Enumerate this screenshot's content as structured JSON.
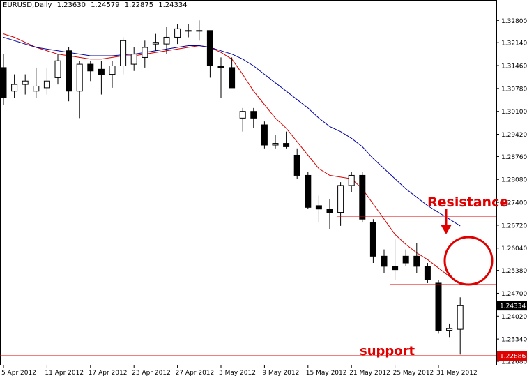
{
  "header": {
    "symbol_label": "EURUSD,Daily",
    "open": "1.23630",
    "high": "1.24579",
    "low": "1.22875",
    "close": "1.24334"
  },
  "chart_data": {
    "type": "candlestick",
    "ylim": [
      1.2268,
      1.332
    ],
    "y_ticks": [
      "1.32800",
      "1.32140",
      "1.31460",
      "1.30780",
      "1.30100",
      "1.29420",
      "1.28760",
      "1.28080",
      "1.27400",
      "1.26720",
      "1.26040",
      "1.25380",
      "1.24700",
      "1.24020",
      "1.23340",
      "1.22680"
    ],
    "x_ticks": [
      {
        "label": "5 Apr 2012",
        "index": 0
      },
      {
        "label": "11 Apr 2012",
        "index": 4
      },
      {
        "label": "17 Apr 2012",
        "index": 8
      },
      {
        "label": "23 Apr 2012",
        "index": 12
      },
      {
        "label": "27 Apr 2012",
        "index": 16
      },
      {
        "label": "3 May 2012",
        "index": 20
      },
      {
        "label": "9 May 2012",
        "index": 24
      },
      {
        "label": "15 May 2012",
        "index": 28
      },
      {
        "label": "21 May 2012",
        "index": 32
      },
      {
        "label": "25 May 2012",
        "index": 36
      },
      {
        "label": "31 May 2012",
        "index": 40
      }
    ],
    "candles": [
      {
        "o": 1.314,
        "h": 1.318,
        "l": 1.303,
        "c": 1.305
      },
      {
        "o": 1.307,
        "h": 1.312,
        "l": 1.305,
        "c": 1.309
      },
      {
        "o": 1.309,
        "h": 1.312,
        "l": 1.306,
        "c": 1.31
      },
      {
        "o": 1.307,
        "h": 1.314,
        "l": 1.305,
        "c": 1.3085
      },
      {
        "o": 1.308,
        "h": 1.314,
        "l": 1.306,
        "c": 1.31
      },
      {
        "o": 1.311,
        "h": 1.318,
        "l": 1.309,
        "c": 1.316
      },
      {
        "o": 1.319,
        "h": 1.32,
        "l": 1.304,
        "c": 1.307
      },
      {
        "o": 1.307,
        "h": 1.316,
        "l": 1.299,
        "c": 1.315
      },
      {
        "o": 1.315,
        "h": 1.316,
        "l": 1.31,
        "c": 1.313
      },
      {
        "o": 1.3135,
        "h": 1.316,
        "l": 1.306,
        "c": 1.312
      },
      {
        "o": 1.312,
        "h": 1.316,
        "l": 1.308,
        "c": 1.3145
      },
      {
        "o": 1.3145,
        "h": 1.323,
        "l": 1.312,
        "c": 1.322
      },
      {
        "o": 1.315,
        "h": 1.32,
        "l": 1.313,
        "c": 1.318
      },
      {
        "o": 1.317,
        "h": 1.322,
        "l": 1.314,
        "c": 1.32
      },
      {
        "o": 1.321,
        "h": 1.324,
        "l": 1.319,
        "c": 1.3215
      },
      {
        "o": 1.321,
        "h": 1.326,
        "l": 1.318,
        "c": 1.323
      },
      {
        "o": 1.323,
        "h": 1.327,
        "l": 1.321,
        "c": 1.3255
      },
      {
        "o": 1.325,
        "h": 1.327,
        "l": 1.323,
        "c": 1.325
      },
      {
        "o": 1.325,
        "h": 1.328,
        "l": 1.322,
        "c": 1.325
      },
      {
        "o": 1.325,
        "h": 1.325,
        "l": 1.311,
        "c": 1.3145
      },
      {
        "o": 1.3145,
        "h": 1.317,
        "l": 1.305,
        "c": 1.314
      },
      {
        "o": 1.314,
        "h": 1.317,
        "l": 1.308,
        "c": 1.308
      },
      {
        "o": 1.299,
        "h": 1.302,
        "l": 1.295,
        "c": 1.301
      },
      {
        "o": 1.301,
        "h": 1.302,
        "l": 1.296,
        "c": 1.299
      },
      {
        "o": 1.297,
        "h": 1.298,
        "l": 1.29,
        "c": 1.291
      },
      {
        "o": 1.291,
        "h": 1.294,
        "l": 1.29,
        "c": 1.2915
      },
      {
        "o": 1.2915,
        "h": 1.295,
        "l": 1.29,
        "c": 1.2905
      },
      {
        "o": 1.288,
        "h": 1.29,
        "l": 1.281,
        "c": 1.282
      },
      {
        "o": 1.282,
        "h": 1.283,
        "l": 1.272,
        "c": 1.2725
      },
      {
        "o": 1.273,
        "h": 1.276,
        "l": 1.268,
        "c": 1.272
      },
      {
        "o": 1.272,
        "h": 1.275,
        "l": 1.266,
        "c": 1.271
      },
      {
        "o": 1.271,
        "h": 1.28,
        "l": 1.267,
        "c": 1.279
      },
      {
        "o": 1.279,
        "h": 1.283,
        "l": 1.277,
        "c": 1.282
      },
      {
        "o": 1.282,
        "h": 1.283,
        "l": 1.268,
        "c": 1.269
      },
      {
        "o": 1.268,
        "h": 1.269,
        "l": 1.256,
        "c": 1.258
      },
      {
        "o": 1.258,
        "h": 1.26,
        "l": 1.253,
        "c": 1.255
      },
      {
        "o": 1.255,
        "h": 1.263,
        "l": 1.251,
        "c": 1.254
      },
      {
        "o": 1.258,
        "h": 1.26,
        "l": 1.255,
        "c": 1.256
      },
      {
        "o": 1.258,
        "h": 1.262,
        "l": 1.253,
        "c": 1.255
      },
      {
        "o": 1.255,
        "h": 1.256,
        "l": 1.25,
        "c": 1.251
      },
      {
        "o": 1.25,
        "h": 1.251,
        "l": 1.235,
        "c": 1.236
      },
      {
        "o": 1.236,
        "h": 1.238,
        "l": 1.234,
        "c": 1.2365
      },
      {
        "o": 1.2363,
        "h": 1.2458,
        "l": 1.2288,
        "c": 1.2433
      }
    ],
    "series": [
      {
        "color": "#d40000",
        "values": [
          1.324,
          1.323,
          1.3215,
          1.32,
          1.319,
          1.318,
          1.3175,
          1.317,
          1.3165,
          1.3165,
          1.317,
          1.3175,
          1.3175,
          1.318,
          1.3185,
          1.319,
          1.3195,
          1.32,
          1.3205,
          1.32,
          1.3185,
          1.3165,
          1.312,
          1.307,
          1.303,
          1.299,
          1.296,
          1.292,
          1.288,
          1.284,
          1.282,
          1.2815,
          1.281,
          1.278,
          1.2735,
          1.269,
          1.2645,
          1.2615,
          1.259,
          1.257,
          1.2545,
          1.252,
          1.25
        ]
      },
      {
        "color": "#0000a0",
        "values": [
          1.323,
          1.322,
          1.321,
          1.32,
          1.3195,
          1.319,
          1.3185,
          1.318,
          1.3175,
          1.3175,
          1.3175,
          1.3178,
          1.318,
          1.3185,
          1.319,
          1.3195,
          1.32,
          1.3205,
          1.3205,
          1.32,
          1.319,
          1.318,
          1.3165,
          1.3145,
          1.312,
          1.3095,
          1.307,
          1.3045,
          1.302,
          1.299,
          1.2965,
          1.295,
          1.293,
          1.2905,
          1.287,
          1.284,
          1.281,
          1.278,
          1.2755,
          1.273,
          1.271,
          1.269,
          1.267
        ]
      }
    ],
    "current_price_label": "1.24334",
    "support_price_label": "1.22886",
    "annotations": {
      "resistance_label": "Resistance",
      "support_label": "support"
    }
  },
  "colors": {
    "annotation": "#e00000",
    "bear_candle": "#000000",
    "bull_candle": "#ffffff",
    "axis": "#000000"
  }
}
